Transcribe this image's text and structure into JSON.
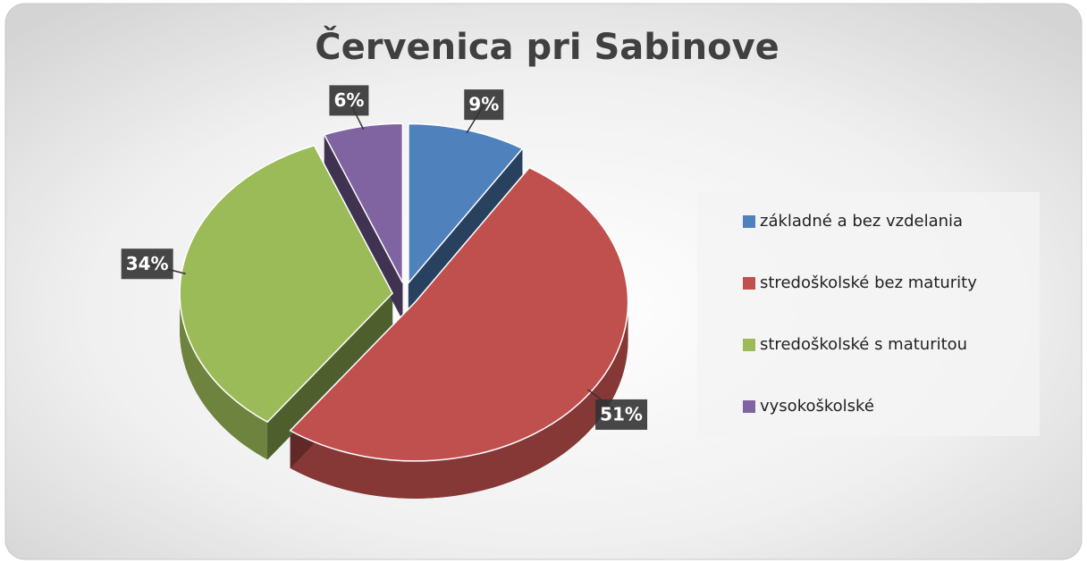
{
  "chart_data": {
    "type": "pie",
    "title": "Červenica pri Sabinove",
    "categories": [
      "základné a bez vzdelania",
      "stredoškolské bez maturity",
      "stredoškolské s maturitou",
      "vysokoškolské"
    ],
    "values": [
      9,
      51,
      34,
      6
    ],
    "value_labels": [
      "9%",
      "51%",
      "34%",
      "6%"
    ],
    "colors": [
      "#4f81bd",
      "#c0504d",
      "#9bbb59",
      "#8064a2"
    ],
    "legend": "right"
  }
}
